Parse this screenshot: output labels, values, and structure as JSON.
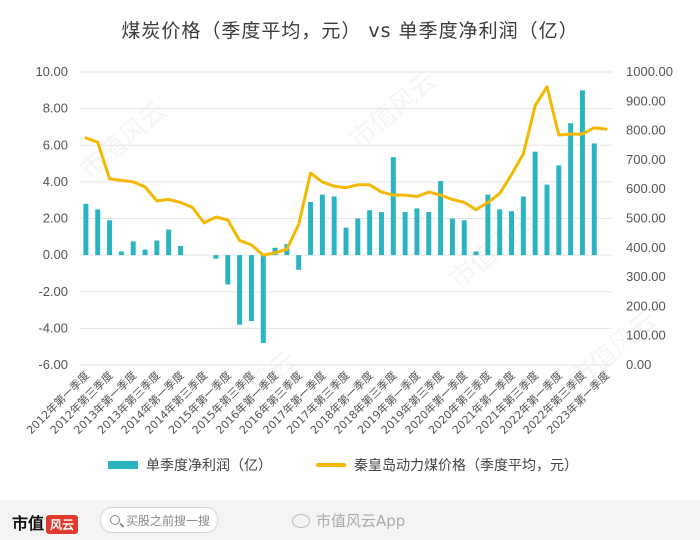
{
  "title": "煤炭价格（季度平均，元） vs 单季度净利润（亿）",
  "watermark": "市值风云",
  "footer": {
    "brand": "市值",
    "brand_mark": "风云",
    "search_placeholder": "买股之前搜一搜",
    "weibo": "市值风云App"
  },
  "colors": {
    "bar": "#2ab3c0",
    "line": "#f5b800",
    "grid": "#e6e6e6"
  },
  "chart_data": {
    "type": "bar+line",
    "title": "煤炭价格（季度平均，元） vs 单季度净利润（亿）",
    "legend_placement": "bottom",
    "grid": true,
    "left_axis": {
      "ylim": [
        -6,
        10
      ],
      "ticks": [
        "10.00",
        "8.00",
        "6.00",
        "4.00",
        "2.00",
        "0.00",
        "-2.00",
        "-4.00",
        "-6.00"
      ]
    },
    "right_axis": {
      "ylim": [
        0,
        1000
      ],
      "ticks": [
        "1000.00",
        "900.00",
        "800.00",
        "700.00",
        "600.00",
        "500.00",
        "400.00",
        "300.00",
        "200.00",
        "100.00",
        "0.00"
      ]
    },
    "x_tick_labels": [
      "2012年第一季度",
      "2012年第三季度",
      "2013年第一季度",
      "2013年第三季度",
      "2014年第一季度",
      "2014年第三季度",
      "2015年第一季度",
      "2015年第三季度",
      "2016年第一季度",
      "2016年第三季度",
      "2017年第一季度",
      "2017年第三季度",
      "2018年第一季度",
      "2018年第三季度",
      "2019年第一季度",
      "2019年第三季度",
      "2020年第一季度",
      "2020年第三季度",
      "2021年第一季度",
      "2021年第三季度",
      "2022年第一季度",
      "2022年第三季度",
      "2023年第一季度"
    ],
    "categories": [
      "2012Q1",
      "2012Q2",
      "2012Q3",
      "2012Q4",
      "2013Q1",
      "2013Q2",
      "2013Q3",
      "2013Q4",
      "2014Q1",
      "2014Q2",
      "2014Q3",
      "2014Q4",
      "2015Q1",
      "2015Q2",
      "2015Q3",
      "2015Q4",
      "2016Q1",
      "2016Q2",
      "2016Q3",
      "2016Q4",
      "2017Q1",
      "2017Q2",
      "2017Q3",
      "2017Q4",
      "2018Q1",
      "2018Q2",
      "2018Q3",
      "2018Q4",
      "2019Q1",
      "2019Q2",
      "2019Q3",
      "2019Q4",
      "2020Q1",
      "2020Q2",
      "2020Q3",
      "2020Q4",
      "2021Q1",
      "2021Q2",
      "2021Q3",
      "2021Q4",
      "2022Q1",
      "2022Q2",
      "2022Q3",
      "2022Q4",
      "2023Q1"
    ],
    "series": [
      {
        "name": "单季度净利润（亿）",
        "type": "bar",
        "axis": "left",
        "values": [
          2.8,
          2.5,
          1.9,
          0.2,
          0.75,
          0.3,
          0.8,
          1.4,
          0.5,
          0,
          0,
          -0.2,
          -1.6,
          -3.8,
          -3.6,
          -4.8,
          0.4,
          0.6,
          -0.8,
          2.9,
          3.3,
          3.2,
          1.5,
          2.0,
          2.45,
          2.35,
          5.35,
          2.35,
          2.55,
          2.35,
          4.05,
          2.0,
          1.9,
          0.2,
          3.3,
          2.5,
          2.4,
          3.2,
          5.65,
          3.85,
          4.9,
          7.2,
          9.0,
          6.1,
          null
        ]
      },
      {
        "name": "秦皇岛动力煤价格（季度平均，元）",
        "type": "line",
        "axis": "right",
        "values": [
          775,
          760,
          635,
          630,
          625,
          608,
          560,
          565,
          555,
          538,
          485,
          505,
          495,
          425,
          410,
          375,
          383,
          395,
          480,
          655,
          625,
          610,
          605,
          615,
          615,
          590,
          580,
          580,
          575,
          590,
          580,
          565,
          555,
          530,
          555,
          585,
          650,
          720,
          885,
          950,
          785,
          788,
          788,
          810,
          805
        ]
      }
    ]
  }
}
